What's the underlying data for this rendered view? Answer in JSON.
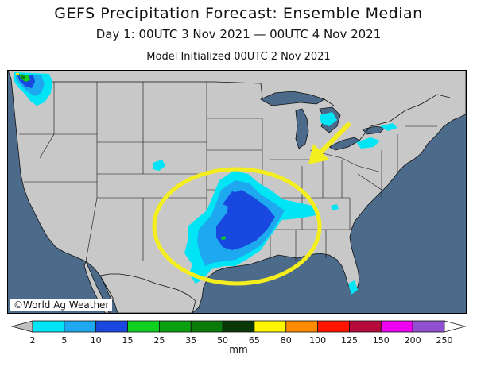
{
  "header": {
    "title": "GEFS Precipitation Forecast: Ensemble Median",
    "subtitle": "Day 1: 00UTC 3 Nov 2021 — 00UTC 4 Nov 2021",
    "initialized": "Model Initialized 00UTC 2 Nov 2021"
  },
  "map": {
    "credit": "©World Ag Weather",
    "colors": {
      "ocean": "#4c6a8a",
      "land": "#c8c8c8",
      "borders": "#111111",
      "highlight_circle": "#f5ee1e",
      "arrow": "#f5ee1e"
    },
    "annotations": [
      "yellow circle around heaviest precipitation",
      "yellow arrow pointing to precipitation area"
    ]
  },
  "legend": {
    "unit": "mm",
    "ticks": [
      "2",
      "5",
      "10",
      "15",
      "25",
      "35",
      "50",
      "65",
      "80",
      "100",
      "125",
      "150",
      "200",
      "250"
    ],
    "colors": [
      "#00e5f5",
      "#1ea8f0",
      "#1848e0",
      "#10d020",
      "#0aa010",
      "#0a7a0a",
      "#083808",
      "#fff600",
      "#ff8c00",
      "#ff1400",
      "#b80a3a",
      "#f000f0",
      "#9050d0"
    ],
    "end_color": "#c0c0c0"
  }
}
